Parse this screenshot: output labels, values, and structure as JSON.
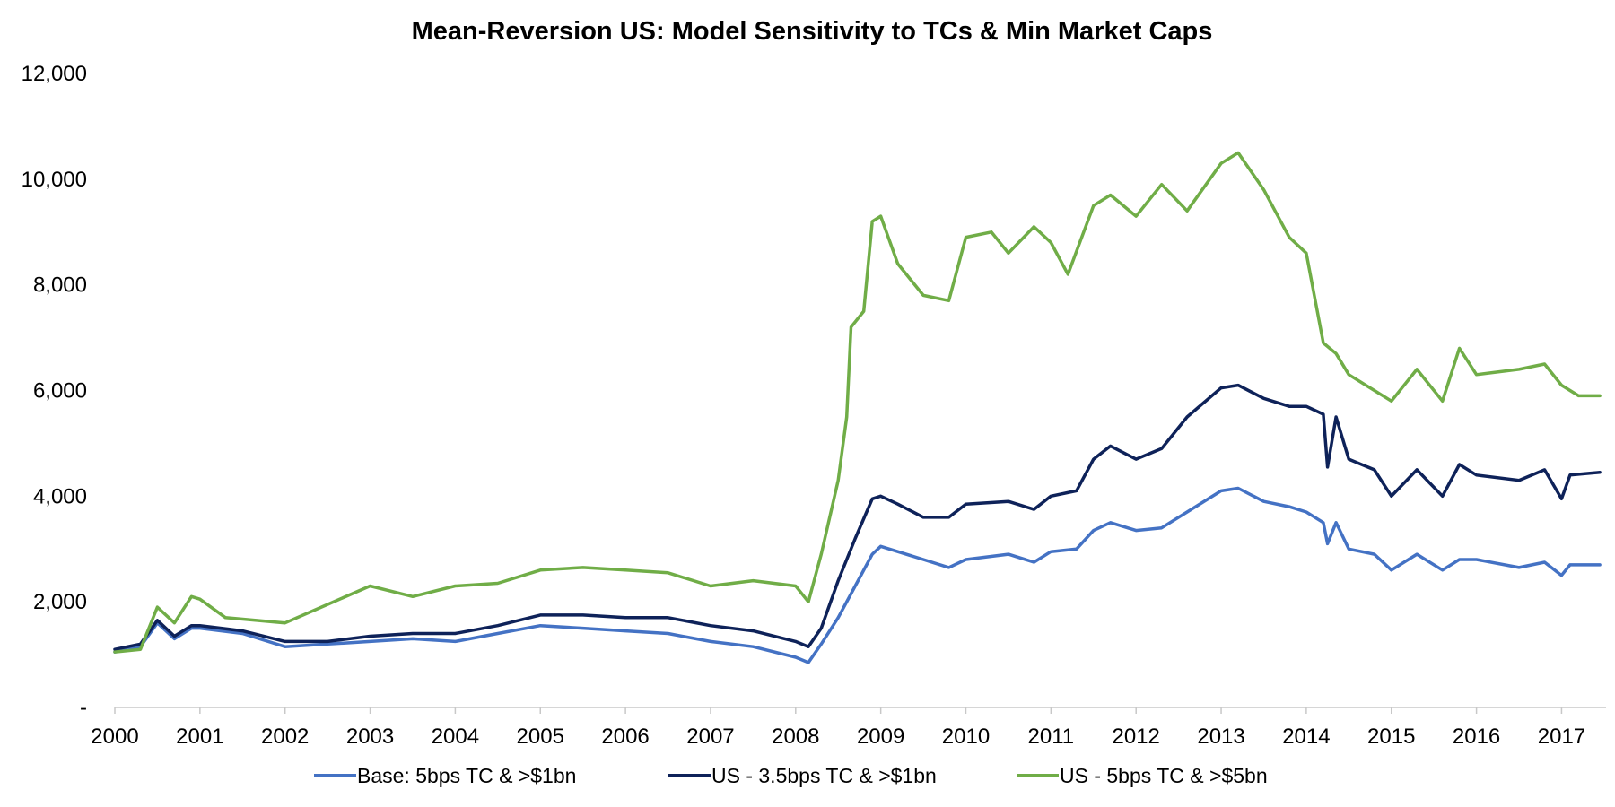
{
  "chart_data": {
    "type": "line",
    "title": "Mean-Reversion US: Model Sensitivity to TCs & Min Market Caps",
    "xlabel": "",
    "ylabel": "",
    "x_range": [
      2000,
      2017.45
    ],
    "ylim": [
      0,
      12000
    ],
    "x_ticks": [
      "2000",
      "2001",
      "2002",
      "2003",
      "2004",
      "2005",
      "2006",
      "2007",
      "2008",
      "2009",
      "2010",
      "2011",
      "2012",
      "2013",
      "2014",
      "2015",
      "2016",
      "2017"
    ],
    "y_ticks": [
      {
        "value": 0,
        "label": "-"
      },
      {
        "value": 2000,
        "label": "2,000"
      },
      {
        "value": 4000,
        "label": "4,000"
      },
      {
        "value": 6000,
        "label": "6,000"
      },
      {
        "value": 8000,
        "label": "8,000"
      },
      {
        "value": 10000,
        "label": "10,000"
      },
      {
        "value": 12000,
        "label": "12,000"
      }
    ],
    "grid": false,
    "legend_position": "bottom",
    "series": [
      {
        "name": "Base: 5bps TC & >$1bn",
        "color": "#4472C4",
        "points": [
          [
            2000.0,
            1050
          ],
          [
            2000.3,
            1150
          ],
          [
            2000.5,
            1600
          ],
          [
            2000.7,
            1300
          ],
          [
            2000.9,
            1500
          ],
          [
            2001.0,
            1500
          ],
          [
            2001.5,
            1400
          ],
          [
            2002.0,
            1150
          ],
          [
            2002.5,
            1200
          ],
          [
            2003.0,
            1250
          ],
          [
            2003.5,
            1300
          ],
          [
            2004.0,
            1250
          ],
          [
            2004.5,
            1400
          ],
          [
            2005.0,
            1550
          ],
          [
            2005.5,
            1500
          ],
          [
            2006.0,
            1450
          ],
          [
            2006.5,
            1400
          ],
          [
            2007.0,
            1250
          ],
          [
            2007.5,
            1150
          ],
          [
            2008.0,
            950
          ],
          [
            2008.15,
            850
          ],
          [
            2008.3,
            1200
          ],
          [
            2008.5,
            1700
          ],
          [
            2008.7,
            2300
          ],
          [
            2008.9,
            2900
          ],
          [
            2009.0,
            3050
          ],
          [
            2009.2,
            2950
          ],
          [
            2009.5,
            2800
          ],
          [
            2009.8,
            2650
          ],
          [
            2010.0,
            2800
          ],
          [
            2010.5,
            2900
          ],
          [
            2010.8,
            2750
          ],
          [
            2011.0,
            2950
          ],
          [
            2011.3,
            3000
          ],
          [
            2011.5,
            3350
          ],
          [
            2011.7,
            3500
          ],
          [
            2012.0,
            3350
          ],
          [
            2012.3,
            3400
          ],
          [
            2012.6,
            3700
          ],
          [
            2013.0,
            4100
          ],
          [
            2013.2,
            4150
          ],
          [
            2013.5,
            3900
          ],
          [
            2013.8,
            3800
          ],
          [
            2014.0,
            3700
          ],
          [
            2014.2,
            3500
          ],
          [
            2014.25,
            3100
          ],
          [
            2014.35,
            3500
          ],
          [
            2014.5,
            3000
          ],
          [
            2014.8,
            2900
          ],
          [
            2015.0,
            2600
          ],
          [
            2015.3,
            2900
          ],
          [
            2015.6,
            2600
          ],
          [
            2015.8,
            2800
          ],
          [
            2016.0,
            2800
          ],
          [
            2016.5,
            2650
          ],
          [
            2016.8,
            2750
          ],
          [
            2017.0,
            2500
          ],
          [
            2017.1,
            2700
          ],
          [
            2017.45,
            2700
          ]
        ]
      },
      {
        "name": "US - 3.5bps TC & >$1bn",
        "color": "#0E2259",
        "points": [
          [
            2000.0,
            1100
          ],
          [
            2000.3,
            1200
          ],
          [
            2000.5,
            1650
          ],
          [
            2000.7,
            1350
          ],
          [
            2000.9,
            1550
          ],
          [
            2001.0,
            1550
          ],
          [
            2001.5,
            1450
          ],
          [
            2002.0,
            1250
          ],
          [
            2002.5,
            1250
          ],
          [
            2003.0,
            1350
          ],
          [
            2003.5,
            1400
          ],
          [
            2004.0,
            1400
          ],
          [
            2004.5,
            1550
          ],
          [
            2005.0,
            1750
          ],
          [
            2005.5,
            1750
          ],
          [
            2006.0,
            1700
          ],
          [
            2006.5,
            1700
          ],
          [
            2007.0,
            1550
          ],
          [
            2007.5,
            1450
          ],
          [
            2008.0,
            1250
          ],
          [
            2008.15,
            1150
          ],
          [
            2008.3,
            1500
          ],
          [
            2008.5,
            2400
          ],
          [
            2008.7,
            3200
          ],
          [
            2008.9,
            3950
          ],
          [
            2009.0,
            4000
          ],
          [
            2009.2,
            3850
          ],
          [
            2009.5,
            3600
          ],
          [
            2009.8,
            3600
          ],
          [
            2010.0,
            3850
          ],
          [
            2010.5,
            3900
          ],
          [
            2010.8,
            3750
          ],
          [
            2011.0,
            4000
          ],
          [
            2011.3,
            4100
          ],
          [
            2011.5,
            4700
          ],
          [
            2011.7,
            4950
          ],
          [
            2012.0,
            4700
          ],
          [
            2012.3,
            4900
          ],
          [
            2012.6,
            5500
          ],
          [
            2013.0,
            6050
          ],
          [
            2013.2,
            6100
          ],
          [
            2013.5,
            5850
          ],
          [
            2013.8,
            5700
          ],
          [
            2014.0,
            5700
          ],
          [
            2014.2,
            5550
          ],
          [
            2014.25,
            4550
          ],
          [
            2014.35,
            5500
          ],
          [
            2014.5,
            4700
          ],
          [
            2014.8,
            4500
          ],
          [
            2015.0,
            4000
          ],
          [
            2015.3,
            4500
          ],
          [
            2015.6,
            4000
          ],
          [
            2015.8,
            4600
          ],
          [
            2016.0,
            4400
          ],
          [
            2016.5,
            4300
          ],
          [
            2016.8,
            4500
          ],
          [
            2017.0,
            3950
          ],
          [
            2017.1,
            4400
          ],
          [
            2017.45,
            4450
          ]
        ]
      },
      {
        "name": "US - 5bps TC & >$5bn",
        "color": "#70AD47",
        "points": [
          [
            2000.0,
            1050
          ],
          [
            2000.3,
            1100
          ],
          [
            2000.5,
            1900
          ],
          [
            2000.7,
            1600
          ],
          [
            2000.9,
            2100
          ],
          [
            2001.0,
            2050
          ],
          [
            2001.3,
            1700
          ],
          [
            2002.0,
            1600
          ],
          [
            2002.5,
            1950
          ],
          [
            2003.0,
            2300
          ],
          [
            2003.5,
            2100
          ],
          [
            2004.0,
            2300
          ],
          [
            2004.5,
            2350
          ],
          [
            2005.0,
            2600
          ],
          [
            2005.5,
            2650
          ],
          [
            2006.0,
            2600
          ],
          [
            2006.5,
            2550
          ],
          [
            2007.0,
            2300
          ],
          [
            2007.5,
            2400
          ],
          [
            2008.0,
            2300
          ],
          [
            2008.15,
            2000
          ],
          [
            2008.3,
            2900
          ],
          [
            2008.5,
            4300
          ],
          [
            2008.6,
            5500
          ],
          [
            2008.65,
            7200
          ],
          [
            2008.8,
            7500
          ],
          [
            2008.9,
            9200
          ],
          [
            2009.0,
            9300
          ],
          [
            2009.2,
            8400
          ],
          [
            2009.5,
            7800
          ],
          [
            2009.8,
            7700
          ],
          [
            2010.0,
            8900
          ],
          [
            2010.3,
            9000
          ],
          [
            2010.5,
            8600
          ],
          [
            2010.8,
            9100
          ],
          [
            2011.0,
            8800
          ],
          [
            2011.2,
            8200
          ],
          [
            2011.5,
            9500
          ],
          [
            2011.7,
            9700
          ],
          [
            2012.0,
            9300
          ],
          [
            2012.3,
            9900
          ],
          [
            2012.6,
            9400
          ],
          [
            2013.0,
            10300
          ],
          [
            2013.2,
            10500
          ],
          [
            2013.5,
            9800
          ],
          [
            2013.8,
            8900
          ],
          [
            2014.0,
            8600
          ],
          [
            2014.2,
            6900
          ],
          [
            2014.35,
            6700
          ],
          [
            2014.5,
            6300
          ],
          [
            2014.8,
            6000
          ],
          [
            2015.0,
            5800
          ],
          [
            2015.3,
            6400
          ],
          [
            2015.6,
            5800
          ],
          [
            2015.8,
            6800
          ],
          [
            2016.0,
            6300
          ],
          [
            2016.5,
            6400
          ],
          [
            2016.8,
            6500
          ],
          [
            2017.0,
            6100
          ],
          [
            2017.2,
            5900
          ],
          [
            2017.45,
            5900
          ]
        ]
      }
    ]
  }
}
